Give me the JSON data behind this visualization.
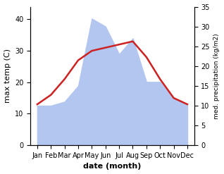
{
  "months": [
    "Jan",
    "Feb",
    "Mar",
    "Apr",
    "May",
    "Jun",
    "Jul",
    "Aug",
    "Sep",
    "Oct",
    "Nov",
    "Dec"
  ],
  "temperature": [
    13,
    16,
    21,
    27,
    30,
    31,
    32,
    33,
    28,
    21,
    15,
    13
  ],
  "precipitation": [
    10,
    10,
    11,
    15,
    32,
    30,
    23,
    27,
    16,
    16,
    12,
    10
  ],
  "temp_color": "#cc2222",
  "precip_fill_color": "#b3c6f0",
  "xlabel": "date (month)",
  "ylabel_left": "max temp (C)",
  "ylabel_right": "med. precipitation (kg/m2)",
  "ylim_left": [
    0,
    44
  ],
  "ylim_right": [
    0,
    35
  ],
  "yticks_left": [
    0,
    10,
    20,
    30,
    40
  ],
  "yticks_right": [
    0,
    5,
    10,
    15,
    20,
    25,
    30,
    35
  ],
  "line_width": 1.8,
  "background_color": "#ffffff"
}
